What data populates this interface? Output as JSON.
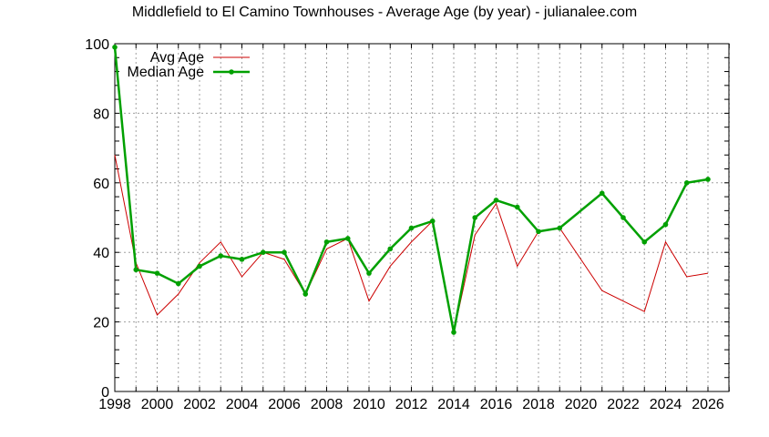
{
  "chart_data": {
    "type": "line",
    "title": "Middlefield to El Camino Townhouses - Average Age (by year) - julianalee.com",
    "xlabel": "",
    "ylabel": "",
    "xlim": [
      1998,
      2027
    ],
    "ylim": [
      0,
      100
    ],
    "grid": true,
    "legend_position": "top-left",
    "x_ticks": [
      1998,
      2000,
      2002,
      2004,
      2006,
      2008,
      2010,
      2012,
      2014,
      2016,
      2018,
      2020,
      2022,
      2024,
      2026
    ],
    "y_ticks": [
      0,
      20,
      40,
      60,
      80,
      100
    ],
    "series": [
      {
        "name": "Avg Age",
        "color": "#cc0000",
        "marker": false,
        "x": [
          1998,
          1999,
          2000,
          2001,
          2002,
          2003,
          2004,
          2005,
          2006,
          2007,
          2008,
          2009,
          2010,
          2011,
          2012,
          2013,
          2014,
          2015,
          2016,
          2017,
          2018,
          2019,
          2021,
          2023,
          2024,
          2025,
          2026
        ],
        "values": [
          68,
          37,
          22,
          28,
          37,
          43,
          33,
          40,
          38,
          28,
          41,
          44,
          26,
          36,
          43,
          49,
          17,
          45,
          54,
          36,
          46,
          47,
          29,
          23,
          43,
          33,
          34
        ]
      },
      {
        "name": "Median Age",
        "color": "#00a000",
        "marker": true,
        "x": [
          1998,
          1999,
          2000,
          2001,
          2002,
          2003,
          2004,
          2005,
          2006,
          2007,
          2008,
          2009,
          2010,
          2011,
          2012,
          2013,
          2014,
          2015,
          2016,
          2017,
          2018,
          2019,
          2021,
          2022,
          2023,
          2024,
          2025,
          2026
        ],
        "values": [
          99,
          35,
          34,
          31,
          36,
          39,
          38,
          40,
          40,
          28,
          43,
          44,
          34,
          41,
          47,
          49,
          17,
          50,
          55,
          53,
          46,
          47,
          57,
          50,
          43,
          48,
          60,
          61
        ]
      }
    ]
  }
}
